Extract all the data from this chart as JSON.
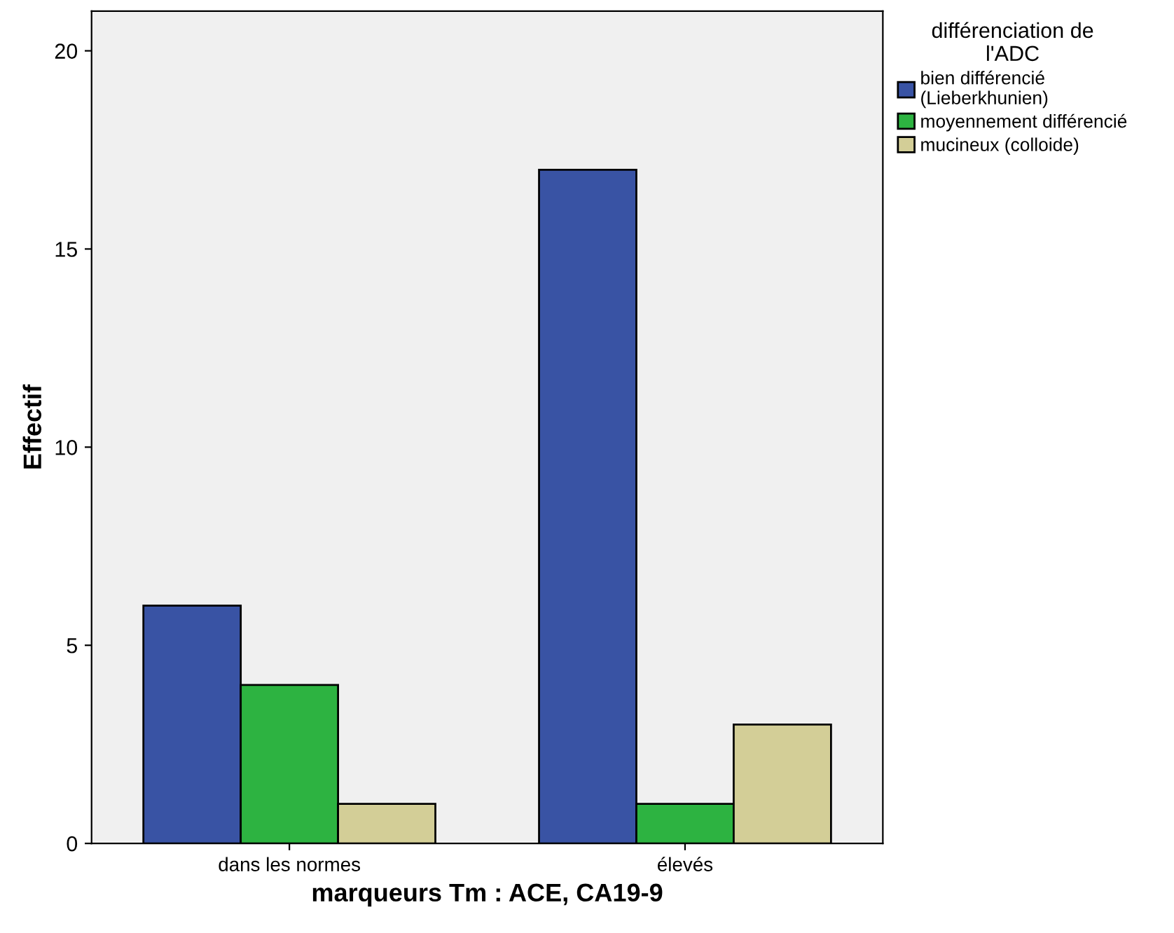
{
  "chart_data": {
    "type": "bar",
    "xlabel": "marqueurs Tm : ACE, CA19-9",
    "ylabel": "Effectif",
    "legend_title": "différenciation de\nl'ADC",
    "categories": [
      "dans les normes",
      "élevés"
    ],
    "series": [
      {
        "name": "bien différencié\n(Lieberkhunien)",
        "color": "#3953a4",
        "values": [
          6,
          17
        ]
      },
      {
        "name": "moyennement différencié",
        "color": "#2db341",
        "values": [
          4,
          1
        ]
      },
      {
        "name": "mucineux (colloide)",
        "color": "#d3ce97",
        "values": [
          1,
          3
        ]
      }
    ],
    "ylim": [
      0,
      21
    ],
    "yticks": [
      0,
      5,
      10,
      15,
      20
    ],
    "grid": false,
    "legend": "right"
  }
}
